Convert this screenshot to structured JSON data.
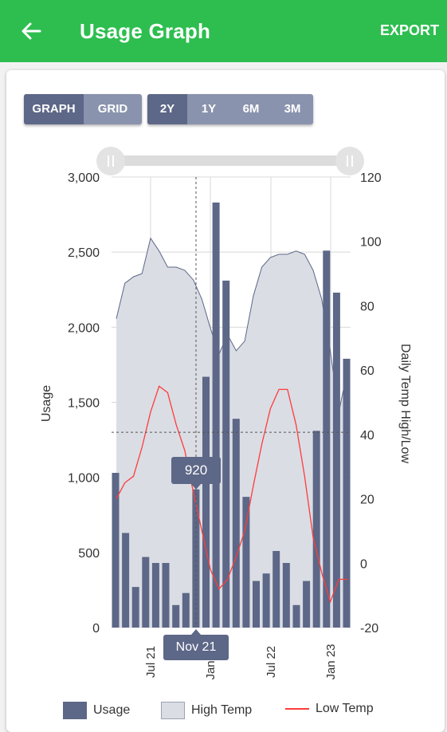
{
  "header": {
    "title": "Usage Graph",
    "export_label": "EXPORT"
  },
  "view_toggle": {
    "graph": "GRAPH",
    "grid": "GRID",
    "selected": "GRAPH"
  },
  "range_toggle": {
    "options": [
      "2Y",
      "1Y",
      "6M",
      "3M"
    ],
    "selected": "2Y"
  },
  "colors": {
    "appbar": "#2dbe4f",
    "bars": "#5d6787",
    "high_fill": "#dadde4",
    "low_line": "#ff3b3b"
  },
  "tooltip": {
    "value": "920",
    "x_label": "Nov 21"
  },
  "chart_data": {
    "type": "bar",
    "ylabel": "Usage",
    "y2label": "Daily Temp High/Low",
    "ylim": [
      0,
      3000
    ],
    "y2lim": [
      -20,
      120
    ],
    "y_ticks": [
      "3,000",
      "2,500",
      "2,000",
      "1,500",
      "1,000",
      "500",
      "0"
    ],
    "y2_ticks": [
      "120",
      "100",
      "80",
      "60",
      "40",
      "20",
      "0",
      "-20"
    ],
    "x_ticks": [
      "Jul 21",
      "Jan 22",
      "Jul 22",
      "Jan 23"
    ],
    "series": [
      {
        "name": "Usage",
        "type": "bar",
        "values": [
          1030,
          630,
          270,
          470,
          430,
          430,
          150,
          230,
          920,
          1670,
          2830,
          2310,
          1390,
          870,
          310,
          360,
          510,
          430,
          150,
          310,
          1310,
          2510,
          2230,
          1790
        ]
      },
      {
        "name": "High Temp",
        "type": "area",
        "values": [
          76,
          87,
          89,
          90,
          101,
          97,
          92,
          92,
          91,
          88,
          82,
          73,
          65,
          71,
          66,
          69,
          83,
          92,
          95,
          96,
          96,
          97,
          96,
          91,
          82,
          66,
          47,
          60
        ]
      },
      {
        "name": "Low Temp",
        "type": "line",
        "values": [
          20,
          25,
          27,
          36,
          47,
          55,
          53,
          43,
          35,
          22,
          10,
          -2,
          -8,
          -5,
          2,
          10,
          24,
          37,
          48,
          54,
          54,
          43,
          27,
          8,
          -3,
          -12,
          -5,
          -5
        ]
      }
    ],
    "legend": [
      "Usage",
      "High Temp",
      "Low Temp"
    ]
  }
}
